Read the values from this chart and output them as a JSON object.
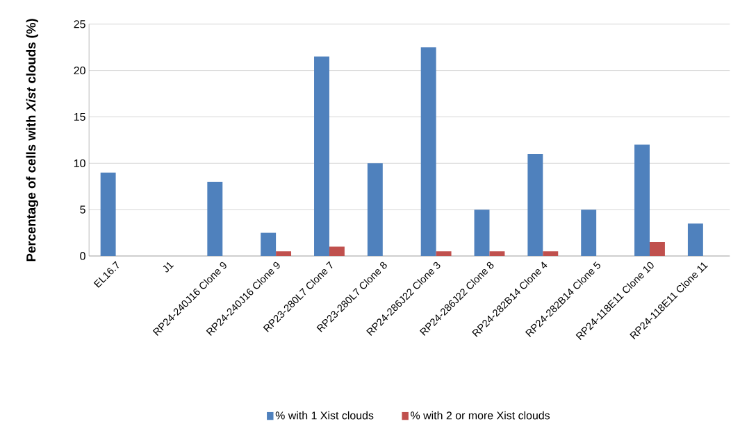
{
  "chart_data": {
    "type": "bar",
    "ylabel": "Percentage of cells with *Xist* clouds (%)",
    "categories": [
      "EL16.7",
      "J1",
      "RP24-240J16 Clone 9",
      "RP24-240J16 Clone 9",
      "RP23-280L7 Clone 7",
      "RP23-280L7 Clone 8",
      "RP24-286J22 Clone 3",
      "RP24-286J22 Clone 8",
      "RP24-282B14 Clone 4",
      "RP24-282B14 Clone 5",
      "RP24-118E11 Clone 10",
      "RP24-118E11 Clone 11"
    ],
    "series": [
      {
        "name": "% with 1 Xist clouds",
        "color": "#4f81bd",
        "values": [
          9,
          0,
          8,
          2.5,
          21.5,
          10,
          22.5,
          5,
          11,
          5,
          12,
          3.5
        ]
      },
      {
        "name": "% with 2 or more Xist clouds",
        "color": "#c0504d",
        "values": [
          0,
          0,
          0,
          0.5,
          1,
          0,
          0.5,
          0.5,
          0.5,
          0,
          1.5,
          0
        ]
      }
    ],
    "ylim": [
      0,
      25
    ],
    "yticks": [
      0,
      5,
      10,
      15,
      20,
      25
    ],
    "grid": "y",
    "legend": "bottom"
  }
}
